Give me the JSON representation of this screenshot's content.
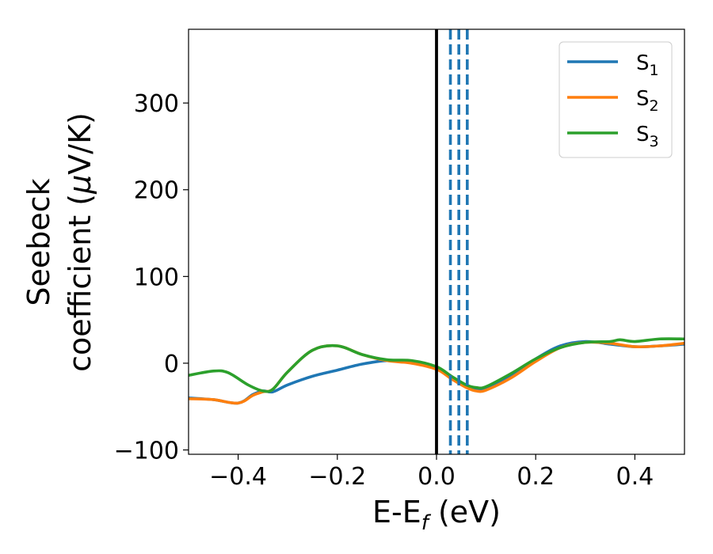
{
  "chart_data": {
    "type": "line",
    "title": "",
    "xlabel": {
      "main": "E-E",
      "sub": "f",
      "unit": " (eV)"
    },
    "ylabel": {
      "line1": "Seebeck",
      "line2_prefix": "coefficient  (",
      "mu": "μ",
      "line2_suffix": "V/K)"
    },
    "xlim": [
      -0.5,
      0.5
    ],
    "ylim": [
      -105,
      385
    ],
    "xticks": [
      -0.4,
      -0.2,
      0.0,
      0.2,
      0.4
    ],
    "xtick_labels": [
      "−0.4",
      "−0.2",
      "0.0",
      "0.2",
      "0.4"
    ],
    "yticks": [
      -100,
      0,
      100,
      200,
      300
    ],
    "ytick_labels": [
      "−100",
      "0",
      "100",
      "200",
      "300"
    ],
    "grid": false,
    "legend_position": "top-right",
    "series": [
      {
        "name": "S",
        "sub": "1",
        "color": "#1f77b4",
        "x": [
          -0.5,
          -0.45,
          -0.4,
          -0.37,
          -0.35,
          -0.33,
          -0.3,
          -0.25,
          -0.2,
          -0.15,
          -0.1,
          -0.05,
          0.0,
          0.03,
          0.06,
          0.08,
          0.1,
          0.15,
          0.2,
          0.25,
          0.3,
          0.35,
          0.4,
          0.45,
          0.5
        ],
        "y": [
          -40,
          -42,
          -46,
          -36,
          -32,
          -33,
          -25,
          -15,
          -8,
          -1,
          3,
          1,
          -6,
          -17,
          -26,
          -30,
          -30,
          -15,
          5,
          20,
          25,
          22,
          19,
          20,
          22
        ]
      },
      {
        "name": "S",
        "sub": "2",
        "color": "#ff7f0e",
        "x": [
          -0.5,
          -0.45,
          -0.4,
          -0.37,
          -0.35,
          -0.33,
          -0.3,
          -0.25,
          -0.2,
          -0.15,
          -0.1,
          -0.05,
          0.0,
          0.03,
          0.06,
          0.08,
          0.1,
          0.15,
          0.2,
          0.25,
          0.3,
          0.35,
          0.4,
          0.45,
          0.5
        ],
        "y": [
          -41,
          -42,
          -46,
          -37,
          -33,
          -30,
          -10,
          15,
          20,
          10,
          3,
          0,
          -7,
          -18,
          -28,
          -32,
          -31,
          -17,
          2,
          18,
          24,
          23,
          19,
          20,
          23
        ]
      },
      {
        "name": "S",
        "sub": "3",
        "color": "#2ca02c",
        "x": [
          -0.5,
          -0.45,
          -0.42,
          -0.38,
          -0.35,
          -0.33,
          -0.3,
          -0.25,
          -0.2,
          -0.15,
          -0.1,
          -0.05,
          0.0,
          0.03,
          0.06,
          0.08,
          0.1,
          0.15,
          0.2,
          0.25,
          0.3,
          0.35,
          0.37,
          0.4,
          0.45,
          0.5
        ],
        "y": [
          -14,
          -9,
          -11,
          -25,
          -32,
          -30,
          -10,
          15,
          20,
          10,
          4,
          3,
          -4,
          -15,
          -25,
          -28,
          -27,
          -12,
          5,
          18,
          24,
          25,
          27,
          25,
          28,
          28
        ]
      }
    ],
    "vlines": [
      {
        "x": 0.0,
        "color": "#000000",
        "style": "solid"
      },
      {
        "x": 0.028,
        "color": "#1f77b4",
        "style": "dashed"
      },
      {
        "x": 0.045,
        "color": "#1f77b4",
        "style": "dashed"
      },
      {
        "x": 0.062,
        "color": "#1f77b4",
        "style": "dashed"
      }
    ]
  }
}
